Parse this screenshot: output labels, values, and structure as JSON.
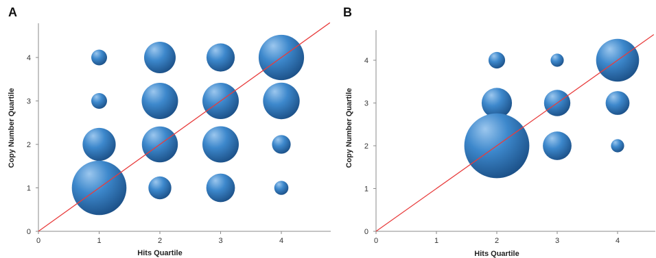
{
  "colors": {
    "bubble_light": "#9cc7ee",
    "bubble_mid": "#3d88cc",
    "bubble_dark": "#1b4f86",
    "diagonal": "#e83c3c",
    "axis": "#8a8a8a"
  },
  "chart_data": [
    {
      "panel": "A",
      "type": "scatter",
      "xlabel": "Hits Quartile",
      "ylabel": "Copy Number Quartile",
      "xlim": [
        0,
        4.8
      ],
      "ylim": [
        0,
        4.8
      ],
      "xticks": [
        "0",
        "1",
        "2",
        "3",
        "4"
      ],
      "yticks": [
        "0",
        "1",
        "2",
        "3",
        "4"
      ],
      "reference_line": "y = x",
      "points": [
        {
          "x": 1,
          "y": 4,
          "size": 1
        },
        {
          "x": 1,
          "y": 3,
          "size": 1
        },
        {
          "x": 1,
          "y": 2,
          "size": 4.4
        },
        {
          "x": 1,
          "y": 1,
          "size": 12
        },
        {
          "x": 2,
          "y": 4,
          "size": 4
        },
        {
          "x": 2,
          "y": 3,
          "size": 5.3
        },
        {
          "x": 2,
          "y": 2,
          "size": 5.2
        },
        {
          "x": 2,
          "y": 1,
          "size": 2.1
        },
        {
          "x": 3,
          "y": 4,
          "size": 3.2
        },
        {
          "x": 3,
          "y": 3,
          "size": 5.3
        },
        {
          "x": 3,
          "y": 2,
          "size": 5.3
        },
        {
          "x": 3,
          "y": 1,
          "size": 3.3
        },
        {
          "x": 4,
          "y": 4,
          "size": 8.3
        },
        {
          "x": 4,
          "y": 3,
          "size": 5.4
        },
        {
          "x": 4,
          "y": 2,
          "size": 1.4
        },
        {
          "x": 4,
          "y": 1,
          "size": 0.8
        }
      ]
    },
    {
      "panel": "B",
      "type": "scatter",
      "xlabel": "Hits Quartile",
      "ylabel": "Copy Number Quartile",
      "xlim": [
        0,
        4.6
      ],
      "ylim": [
        0,
        4.6
      ],
      "xticks": [
        "0",
        "1",
        "2",
        "3",
        "4"
      ],
      "yticks": [
        "0",
        "1",
        "2",
        "3",
        "4"
      ],
      "reference_line": "y = x",
      "points": [
        {
          "x": 2,
          "y": 4,
          "size": 1.1
        },
        {
          "x": 2,
          "y": 3,
          "size": 3.7
        },
        {
          "x": 2,
          "y": 2,
          "size": 17
        },
        {
          "x": 3,
          "y": 4,
          "size": 0.7
        },
        {
          "x": 3,
          "y": 3,
          "size": 2.8
        },
        {
          "x": 3,
          "y": 2,
          "size": 3.3
        },
        {
          "x": 4,
          "y": 4,
          "size": 7.4
        },
        {
          "x": 4,
          "y": 3,
          "size": 2.3
        },
        {
          "x": 4,
          "y": 2,
          "size": 0.7
        }
      ]
    }
  ]
}
